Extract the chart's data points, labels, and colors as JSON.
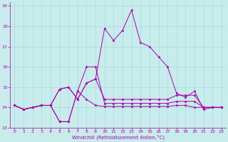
{
  "xlabel": "Windchill (Refroidissement éolien,°C)",
  "xlim": [
    -0.5,
    23.5
  ],
  "ylim": [
    13.0,
    19.2
  ],
  "yticks": [
    13,
    14,
    15,
    16,
    17,
    18,
    19
  ],
  "xticks": [
    0,
    1,
    2,
    3,
    4,
    5,
    6,
    7,
    8,
    9,
    10,
    11,
    12,
    13,
    14,
    15,
    16,
    17,
    18,
    19,
    20,
    21,
    22,
    23
  ],
  "background_color": "#c8ecec",
  "grid_color": "#a8d8d8",
  "line_color": "#aa00aa",
  "lines": [
    [
      14.1,
      13.9,
      14.0,
      14.1,
      14.1,
      13.3,
      13.3,
      14.8,
      14.4,
      14.1,
      14.05,
      14.05,
      14.05,
      14.05,
      14.05,
      14.05,
      14.05,
      14.05,
      14.1,
      14.1,
      14.0,
      14.0,
      14.0,
      14.0
    ],
    [
      14.1,
      13.9,
      14.0,
      14.1,
      14.1,
      14.9,
      15.0,
      14.4,
      15.2,
      15.4,
      17.9,
      17.3,
      17.8,
      18.8,
      17.2,
      17.0,
      16.5,
      16.0,
      14.7,
      14.5,
      14.8,
      13.9,
      14.0,
      14.0
    ],
    [
      14.1,
      13.9,
      14.0,
      14.1,
      14.1,
      13.3,
      13.3,
      14.8,
      16.0,
      16.0,
      14.2,
      14.2,
      14.2,
      14.2,
      14.2,
      14.2,
      14.2,
      14.2,
      14.3,
      14.3,
      14.3,
      14.0,
      14.0,
      14.0
    ],
    [
      14.1,
      13.9,
      14.0,
      14.1,
      14.1,
      14.9,
      15.0,
      14.4,
      15.2,
      15.4,
      14.4,
      14.4,
      14.4,
      14.4,
      14.4,
      14.4,
      14.4,
      14.4,
      14.6,
      14.6,
      14.6,
      14.0,
      14.0,
      14.0
    ]
  ]
}
